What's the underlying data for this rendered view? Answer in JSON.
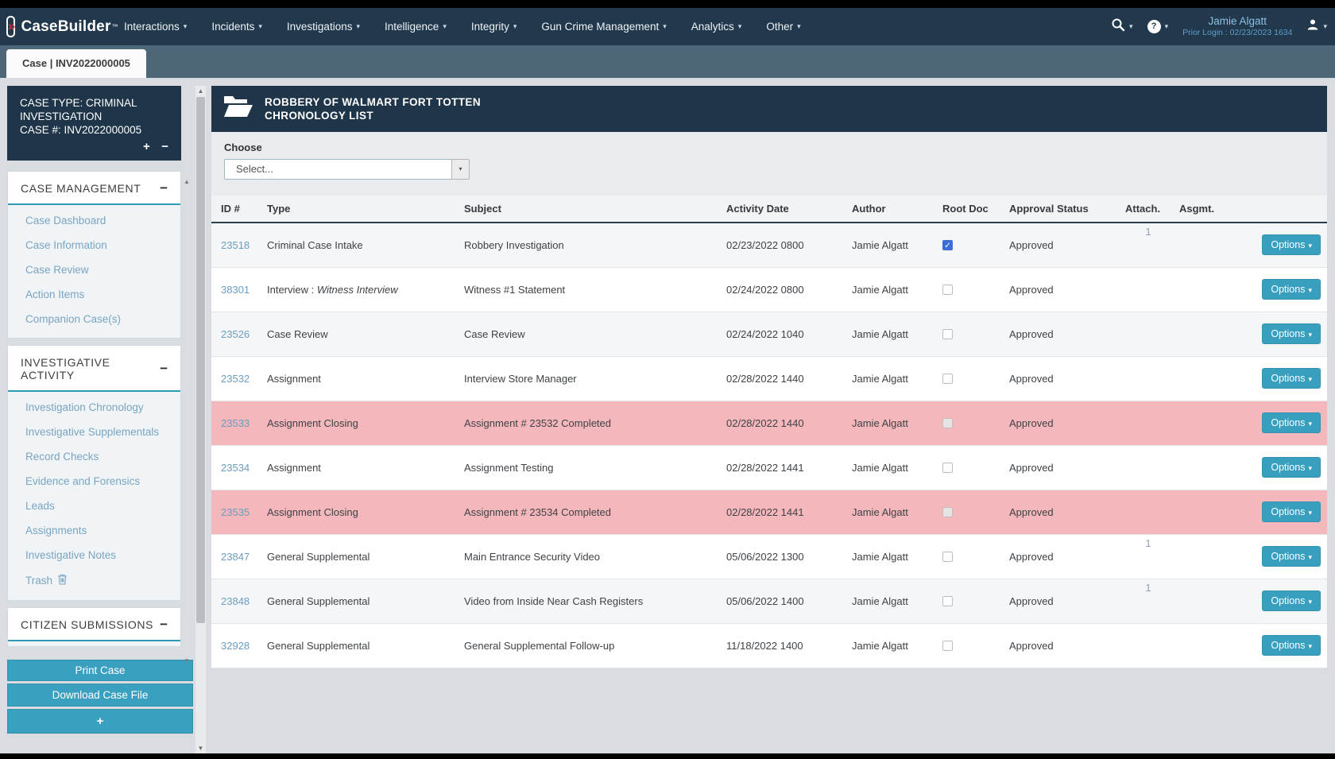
{
  "navbar": {
    "brand": "CaseBuilder",
    "brand_tm": "™",
    "menus": [
      "Interactions",
      "Incidents",
      "Investigations",
      "Intelligence",
      "Integrity",
      "Gun Crime Management",
      "Analytics",
      "Other"
    ],
    "user": {
      "name": "Jamie Algatt",
      "prior_login": "Prior Login : 02/23/2023 1634"
    }
  },
  "tab": {
    "label": "Case | INV2022000005"
  },
  "sidebar": {
    "case_panel": {
      "line1": "CASE TYPE: CRIMINAL INVESTIGATION",
      "line2": "CASE #: INV2022000005"
    },
    "sections": [
      {
        "title": "CASE MANAGEMENT",
        "links": [
          {
            "label": "Case Dashboard"
          },
          {
            "label": "Case Information"
          },
          {
            "label": "Case Review"
          },
          {
            "label": "Action Items"
          },
          {
            "label": "Companion Case(s)"
          }
        ]
      },
      {
        "title": "INVESTIGATIVE ACTIVITY",
        "links": [
          {
            "label": "Investigation Chronology"
          },
          {
            "label": "Investigative Supplementals"
          },
          {
            "label": "Record Checks"
          },
          {
            "label": "Evidence and Forensics"
          },
          {
            "label": "Leads"
          },
          {
            "label": "Assignments"
          },
          {
            "label": "Investigative Notes"
          },
          {
            "label": "Trash",
            "icon": "trash-icon"
          }
        ]
      },
      {
        "title": "CITIZEN SUBMISSIONS",
        "links": []
      }
    ],
    "buttons": [
      "Print Case",
      "Download Case File",
      "+"
    ]
  },
  "content": {
    "header": {
      "title_line1": "ROBBERY OF WALMART FORT TOTTEN",
      "title_line2": "CHRONOLOGY LIST"
    },
    "choose": {
      "label": "Choose",
      "placeholder": "Select..."
    },
    "table": {
      "columns": [
        "ID #",
        "Type",
        "Subject",
        "Activity Date",
        "Author",
        "Root Doc",
        "Approval Status",
        "Attach.",
        "Asgmt."
      ],
      "options_label": "Options",
      "rows": [
        {
          "id": "23518",
          "type": "Criminal Case Intake",
          "type_em": "",
          "subject": "Robbery Investigation",
          "date": "02/23/2022 0800",
          "author": "Jamie Algatt",
          "root_doc": true,
          "status": "Approved",
          "attach": "1",
          "asgmt": "",
          "highlight": false
        },
        {
          "id": "38301",
          "type": "Interview : ",
          "type_em": "Witness Interview",
          "subject": "Witness #1 Statement",
          "date": "02/24/2022 0800",
          "author": "Jamie Algatt",
          "root_doc": false,
          "status": "Approved",
          "attach": "",
          "asgmt": "",
          "highlight": false
        },
        {
          "id": "23526",
          "type": "Case Review",
          "type_em": "",
          "subject": "Case Review",
          "date": "02/24/2022 1040",
          "author": "Jamie Algatt",
          "root_doc": false,
          "status": "Approved",
          "attach": "",
          "asgmt": "",
          "highlight": false
        },
        {
          "id": "23532",
          "type": "Assignment",
          "type_em": "",
          "subject": "Interview Store Manager",
          "date": "02/28/2022 1440",
          "author": "Jamie Algatt",
          "root_doc": false,
          "status": "Approved",
          "attach": "",
          "asgmt": "",
          "highlight": false
        },
        {
          "id": "23533",
          "type": "Assignment Closing",
          "type_em": "",
          "subject": "Assignment # 23532 Completed",
          "date": "02/28/2022 1440",
          "author": "Jamie Algatt",
          "root_doc": false,
          "status": "Approved",
          "attach": "",
          "asgmt": "",
          "highlight": true
        },
        {
          "id": "23534",
          "type": "Assignment",
          "type_em": "",
          "subject": "Assignment Testing",
          "date": "02/28/2022 1441",
          "author": "Jamie Algatt",
          "root_doc": false,
          "status": "Approved",
          "attach": "",
          "asgmt": "",
          "highlight": false
        },
        {
          "id": "23535",
          "type": "Assignment Closing",
          "type_em": "",
          "subject": "Assignment # 23534 Completed",
          "date": "02/28/2022 1441",
          "author": "Jamie Algatt",
          "root_doc": false,
          "status": "Approved",
          "attach": "",
          "asgmt": "",
          "highlight": true
        },
        {
          "id": "23847",
          "type": "General Supplemental",
          "type_em": "",
          "subject": "Main Entrance Security Video",
          "date": "05/06/2022 1300",
          "author": "Jamie Algatt",
          "root_doc": false,
          "status": "Approved",
          "attach": "1",
          "asgmt": "",
          "highlight": false
        },
        {
          "id": "23848",
          "type": "General Supplemental",
          "type_em": "",
          "subject": "Video from Inside Near Cash Registers",
          "date": "05/06/2022 1400",
          "author": "Jamie Algatt",
          "root_doc": false,
          "status": "Approved",
          "attach": "1",
          "asgmt": "",
          "highlight": false
        },
        {
          "id": "32928",
          "type": "General Supplemental",
          "type_em": "",
          "subject": "General Supplemental Follow-up",
          "date": "11/18/2022 1400",
          "author": "Jamie Algatt",
          "root_doc": false,
          "status": "Approved",
          "attach": "",
          "asgmt": "",
          "highlight": false
        }
      ]
    }
  },
  "icons": {
    "chevron_down": "▾",
    "collapse": "−",
    "expand": "+",
    "brand_chevrons": "»",
    "check": "✓",
    "help": "?",
    "scroll_up": "▲",
    "scroll_down": "▼",
    "names": [
      "casebuilder-logo-icon",
      "search-icon",
      "help-icon",
      "user-icon",
      "folder-open-icon",
      "trash-icon",
      "chevron-down-icon"
    ]
  },
  "colors": {
    "navbar": "#22384c",
    "panel_navy": "#1f364a",
    "tabstrip": "#4d6779",
    "teal_accent": "#2f9ab5",
    "teal_button": "#3aa0bf",
    "pink_row": "#f4b7bb",
    "link": "#79a5c2",
    "checked_checkbox": "#3d6ed8"
  }
}
